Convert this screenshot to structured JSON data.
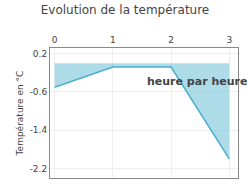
{
  "chart_data": {
    "type": "area",
    "title": "Evolution de la température",
    "ylabel": "Température en °C",
    "annotations": [
      {
        "text": "heure par heure",
        "x": 1.55,
        "y": -0.38
      }
    ],
    "x": [
      0,
      1,
      2,
      3
    ],
    "values": [
      -0.5,
      -0.08,
      -0.08,
      -2.0
    ],
    "color": "#4ab0cc",
    "xlim": [
      -0.08,
      3.15
    ],
    "ylim": [
      -2.4,
      0.32
    ],
    "xticks": [
      0,
      1,
      2,
      3
    ],
    "yticks": [
      0.2,
      -0.6,
      -1.4,
      -2.2
    ],
    "grid": true
  }
}
